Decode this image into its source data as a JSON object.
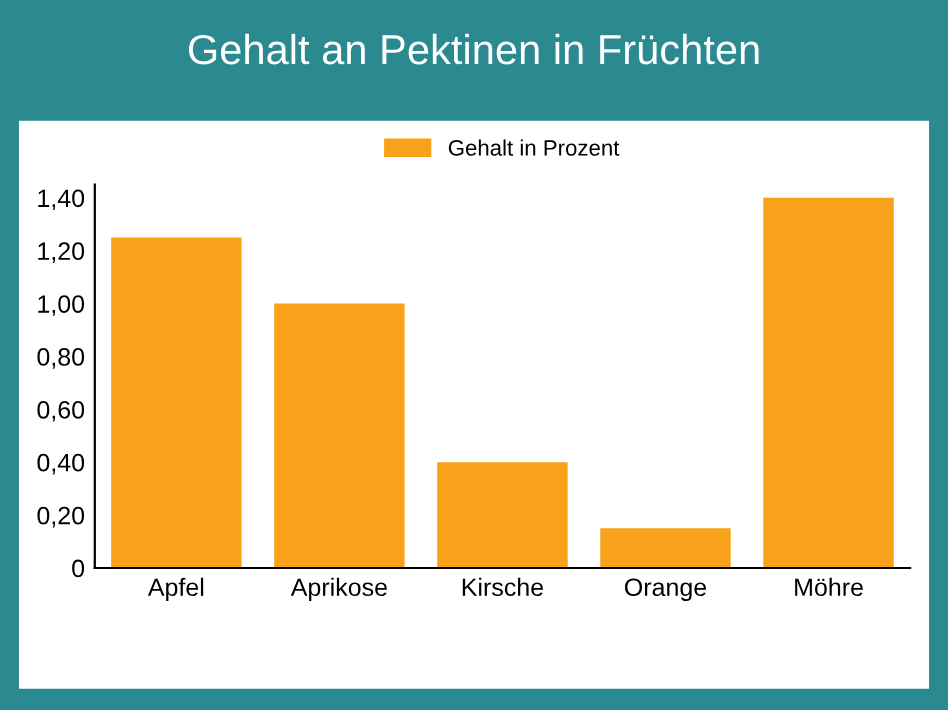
{
  "chart_data": {
    "type": "bar",
    "title": "Gehalt an Pektinen in Früchten",
    "categories": [
      "Apfel",
      "Aprikose",
      "Kirsche",
      "Orange",
      "Möhre"
    ],
    "series": [
      {
        "name": "Gehalt in Prozent",
        "color": "#f9a11b",
        "values": [
          1.25,
          1.0,
          0.4,
          0.15,
          1.4
        ]
      }
    ],
    "ylim": [
      0,
      1.45
    ],
    "yticks": [
      0,
      {
        "value": 0.2,
        "label": "0,20"
      },
      {
        "value": 0.4,
        "label": "0,40"
      },
      {
        "value": 0.6,
        "label": "0,60"
      },
      {
        "value": 0.8,
        "label": "0,80"
      },
      {
        "value": 1.0,
        "label": "1,00"
      },
      {
        "value": 1.2,
        "label": "1,20"
      },
      {
        "value": 1.4,
        "label": "1,40"
      }
    ],
    "grid": false,
    "legend": "top"
  }
}
